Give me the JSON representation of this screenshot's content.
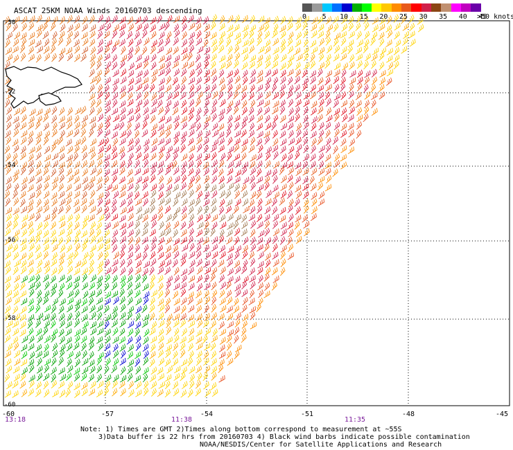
{
  "title": "ASCAT 25KM NOAA Winds 20160703 descending",
  "legend": {
    "units": ">50 knots",
    "labels": [
      "0",
      "5",
      "10",
      "15",
      "20",
      "25",
      "30",
      "35",
      "40",
      "45"
    ],
    "colors": [
      "#555555",
      "#9a9a9a",
      "#00c8ff",
      "#0070ff",
      "#0000d0",
      "#00b000",
      "#00ff00",
      "#ffff00",
      "#ffc800",
      "#ff8c00",
      "#e85a1a",
      "#ff0000",
      "#d0204a",
      "#8b4513",
      "#c09070",
      "#ff00ff",
      "#c000c0",
      "#6a00a8"
    ]
  },
  "map": {
    "lat_labels": [
      "-50",
      "-52",
      "-54",
      "-56",
      "-58",
      "-60"
    ],
    "lon_labels": [
      "-60",
      "-57",
      "-54",
      "-51",
      "-48",
      "-45"
    ],
    "time_labels": [
      "13:18",
      "11:38",
      "11:35"
    ],
    "lat_range": [
      -60,
      -50
    ],
    "lon_range": [
      -60,
      -45
    ],
    "grid": "dotted",
    "features": [
      {
        "name": "Falkland Islands",
        "type": "coastline"
      },
      {
        "name": "ASCAT swath edge",
        "type": "swath"
      }
    ]
  },
  "notes": {
    "line1": "Note: 1) Times are GMT 2)Times along bottom correspond to measurement at ~55S",
    "line2": "3)Data buffer is 22 hrs from 20160703 4) Black wind barbs indicate possible contamination",
    "credit": "NOAA/NESDIS/Center for Satellite Applications and Research"
  }
}
